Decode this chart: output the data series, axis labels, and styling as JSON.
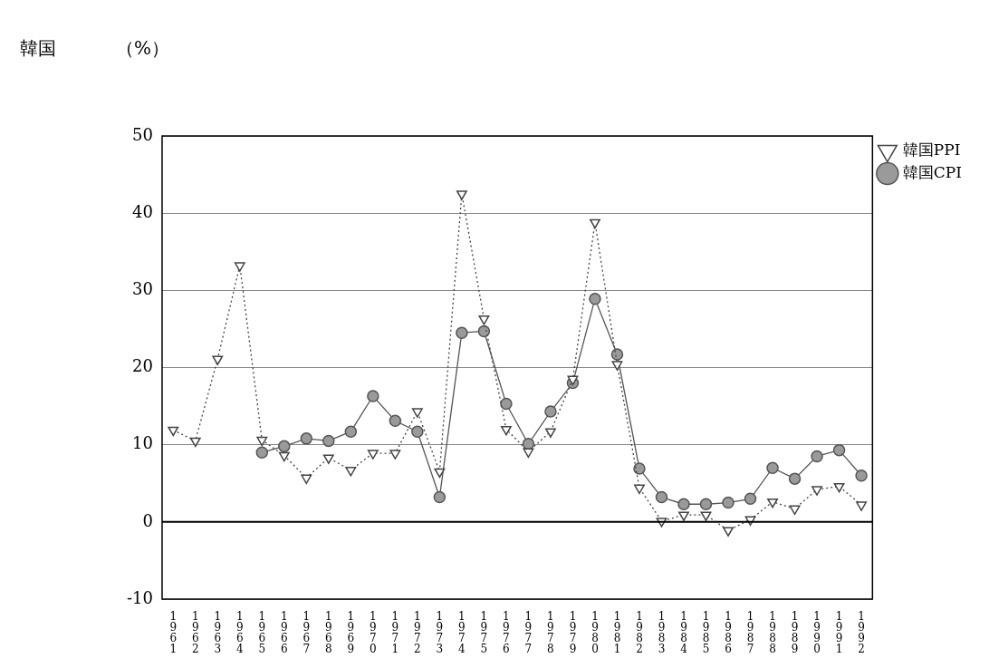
{
  "chart_data": {
    "type": "line",
    "title": "韓国",
    "ylabel": "（%）",
    "categories": [
      "1961",
      "1962",
      "1963",
      "1964",
      "1965",
      "1966",
      "1967",
      "1968",
      "1969",
      "1970",
      "1971",
      "1972",
      "1973",
      "1974",
      "1975",
      "1976",
      "1977",
      "1978",
      "1979",
      "1980",
      "1981",
      "1982",
      "1983",
      "1984",
      "1985",
      "1986",
      "1987",
      "1988",
      "1989",
      "1990",
      "1991",
      "1992"
    ],
    "series": [
      {
        "name": "韓国CPI",
        "color": "#555555",
        "marker": "circle",
        "line_style": "solid",
        "values": [
          null,
          null,
          null,
          null,
          9.0,
          9.8,
          10.8,
          10.5,
          11.7,
          16.3,
          13.1,
          11.7,
          3.2,
          24.5,
          24.7,
          15.3,
          10.1,
          14.3,
          18.0,
          28.9,
          21.7,
          6.9,
          3.2,
          2.3,
          2.3,
          2.5,
          3.0,
          7.0,
          5.6,
          8.5,
          9.3,
          6.0
        ]
      },
      {
        "name": "韓国PPI",
        "color": "#444444",
        "marker": "triangle",
        "line_style": "dotted",
        "values": [
          11.9,
          10.5,
          21.1,
          33.2,
          10.6,
          8.6,
          5.7,
          8.3,
          6.7,
          8.9,
          8.9,
          14.3,
          6.5,
          42.5,
          26.3,
          12.0,
          9.1,
          11.7,
          18.5,
          38.8,
          20.4,
          4.4,
          0.1,
          0.9,
          0.9,
          -1.1,
          0.3,
          2.6,
          1.7,
          4.2,
          4.6,
          2.2
        ]
      }
    ],
    "ylim": [
      -10,
      50
    ],
    "yticks": [
      -10,
      0,
      10,
      20,
      30,
      40,
      50
    ],
    "ref_lines": [
      {
        "axis": "y",
        "value": 0,
        "color": "#000000",
        "line_style": "solid"
      }
    ],
    "grid": "y",
    "legend": "top right"
  }
}
